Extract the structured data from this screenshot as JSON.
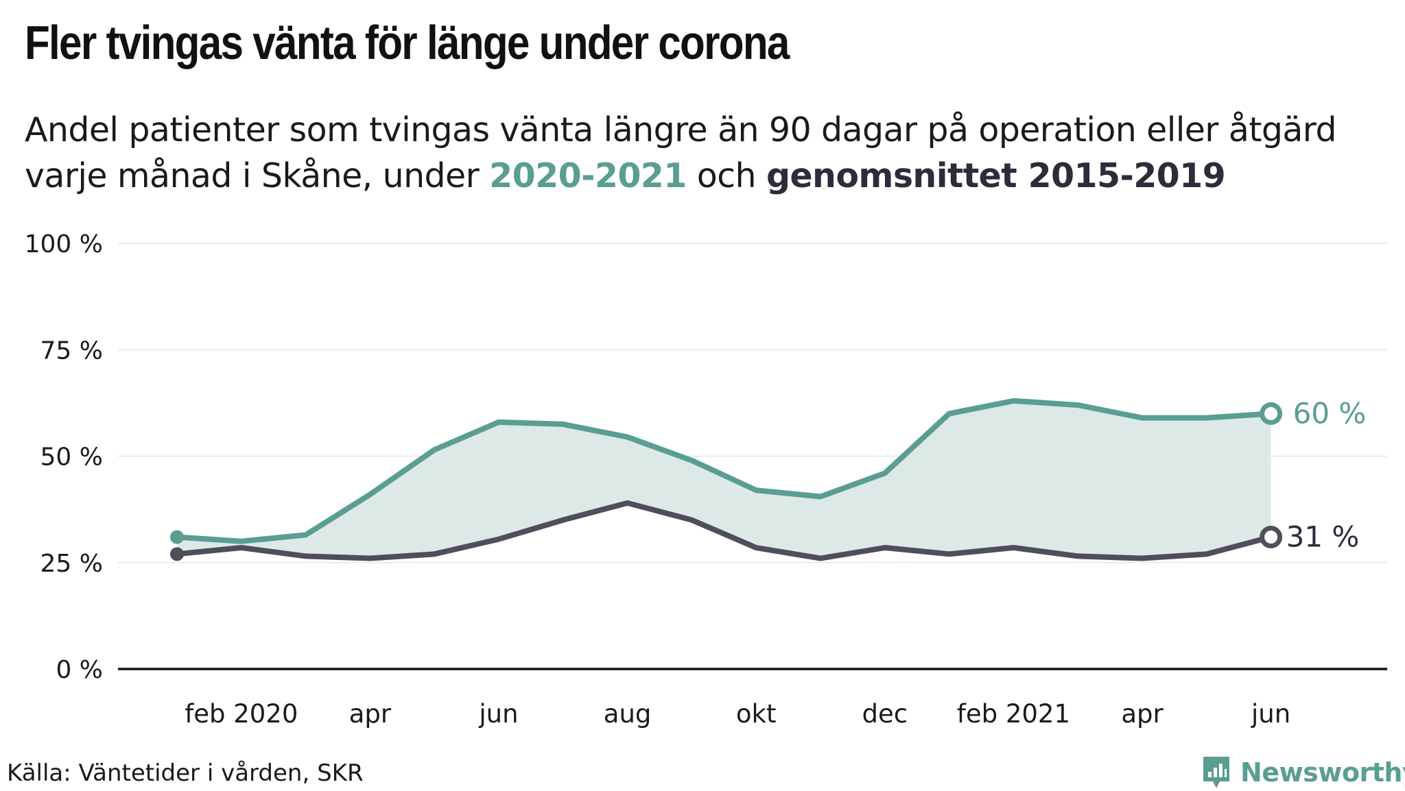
{
  "title": "Fler tvingas vänta för länge under corona",
  "subtitle": {
    "line1": "Andel patienter som tvingas vänta längre än 90 dagar på operation eller åtgärd",
    "line2_prefix": "varje månad i Skåne, under ",
    "highlight_green": "2020-2021",
    "middle": " och ",
    "highlight_dark": "genomsnittet 2015-2019"
  },
  "source": "Källa: Väntetider i vården, SKR",
  "brand": "Newsworthy",
  "colors": {
    "series_2020_2021": "#5a9e92",
    "series_avg": "#4f4e5a",
    "fill": "#dbe8e5",
    "axis": "#111111",
    "grid": "#e6e6e6"
  },
  "chart_data": {
    "type": "line",
    "x": [
      "jan 2020",
      "feb 2020",
      "mar 2020",
      "apr 2020",
      "maj 2020",
      "jun 2020",
      "jul 2020",
      "aug 2020",
      "sep 2020",
      "okt 2020",
      "nov 2020",
      "dec 2020",
      "jan 2021",
      "feb 2021",
      "mar 2021",
      "apr 2021",
      "maj 2021",
      "jun 2021"
    ],
    "x_tick_labels": [
      {
        "index": 1,
        "label": "feb 2020"
      },
      {
        "index": 3,
        "label": "apr"
      },
      {
        "index": 5,
        "label": "jun"
      },
      {
        "index": 7,
        "label": "aug"
      },
      {
        "index": 9,
        "label": "okt"
      },
      {
        "index": 11,
        "label": "dec"
      },
      {
        "index": 13,
        "label": "feb 2021"
      },
      {
        "index": 15,
        "label": "apr"
      },
      {
        "index": 17,
        "label": "jun"
      }
    ],
    "series": [
      {
        "key": "series_2020_2021",
        "values": [
          31,
          30,
          31.5,
          41,
          51.5,
          58,
          57.5,
          54.5,
          49,
          42,
          40.5,
          46,
          60,
          63,
          62,
          59,
          59,
          60
        ]
      },
      {
        "key": "series_avg",
        "values": [
          27,
          28.5,
          26.5,
          26,
          27,
          30.5,
          35,
          39,
          35,
          28.5,
          26,
          28.5,
          27,
          28.5,
          26.5,
          26,
          27,
          31
        ]
      }
    ],
    "end_labels": {
      "series_2020_2021": "60 %",
      "series_avg": "31 %"
    },
    "ylim": [
      0,
      100
    ],
    "y_ticks": [
      0,
      25,
      50,
      75,
      100
    ],
    "y_tick_labels": [
      "0 %",
      "25 %",
      "50 %",
      "75 %",
      "100 %"
    ],
    "grid": true,
    "legend": "none"
  }
}
